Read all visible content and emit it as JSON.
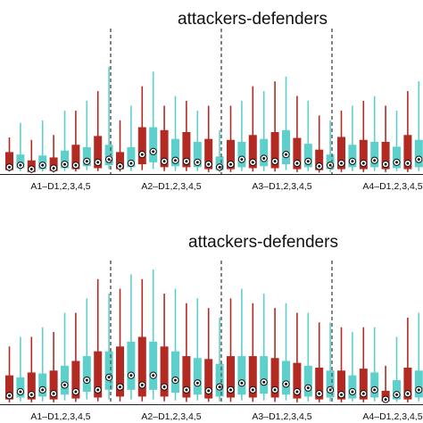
{
  "colors": {
    "attacker": "#b22a22",
    "defender": "#5dd0cb",
    "median_dot": "#111111"
  },
  "chart_data": [
    {
      "type": "box",
      "title": "attackers-defenders",
      "groups": [
        {
          "label": "A1–D1,2,3,4,5",
          "boxes": [
            {
              "series": "A",
              "whisker_low": 0.05,
              "q1": 0.08,
              "median": 0.14,
              "q3": 0.45,
              "whisker_high": 0.75
            },
            {
              "series": "D",
              "whisker_low": 0.06,
              "q1": 0.12,
              "median": 0.18,
              "q3": 0.4,
              "whisker_high": 1.05
            },
            {
              "series": "A",
              "whisker_low": 0.02,
              "q1": 0.04,
              "median": 0.1,
              "q3": 0.28,
              "whisker_high": 0.7
            },
            {
              "series": "D",
              "whisker_low": 0.05,
              "q1": 0.1,
              "median": 0.18,
              "q3": 0.38,
              "whisker_high": 1.1
            },
            {
              "series": "A",
              "whisker_low": 0.03,
              "q1": 0.06,
              "median": 0.12,
              "q3": 0.34,
              "whisker_high": 0.8
            },
            {
              "series": "D",
              "whisker_low": 0.06,
              "q1": 0.12,
              "median": 0.2,
              "q3": 0.48,
              "whisker_high": 1.3
            },
            {
              "series": "A",
              "whisker_low": 0.05,
              "q1": 0.1,
              "median": 0.18,
              "q3": 0.6,
              "whisker_high": 1.3
            },
            {
              "series": "D",
              "whisker_low": 0.08,
              "q1": 0.16,
              "median": 0.26,
              "q3": 0.55,
              "whisker_high": 1.5
            },
            {
              "series": "A",
              "whisker_low": 0.06,
              "q1": 0.12,
              "median": 0.24,
              "q3": 0.78,
              "whisker_high": 1.7
            },
            {
              "series": "D",
              "whisker_low": 0.1,
              "q1": 0.18,
              "median": 0.3,
              "q3": 0.6,
              "whisker_high": 2.2
            }
          ]
        },
        {
          "label": "A2–D1,2,3,4,5",
          "boxes": [
            {
              "series": "A",
              "whisker_low": 0.05,
              "q1": 0.1,
              "median": 0.16,
              "q3": 0.45,
              "whisker_high": 1.1
            },
            {
              "series": "D",
              "whisker_low": 0.06,
              "q1": 0.14,
              "median": 0.22,
              "q3": 0.55,
              "whisker_high": 1.4
            },
            {
              "series": "A",
              "whisker_low": 0.08,
              "q1": 0.2,
              "median": 0.4,
              "q3": 0.96,
              "whisker_high": 1.8
            },
            {
              "series": "D",
              "whisker_low": 0.1,
              "q1": 0.24,
              "median": 0.46,
              "q3": 0.96,
              "whisker_high": 2.1
            },
            {
              "series": "A",
              "whisker_low": 0.06,
              "q1": 0.14,
              "median": 0.26,
              "q3": 0.9,
              "whisker_high": 1.4
            },
            {
              "series": "D",
              "whisker_low": 0.06,
              "q1": 0.16,
              "median": 0.28,
              "q3": 0.72,
              "whisker_high": 1.6
            },
            {
              "series": "A",
              "whisker_low": 0.06,
              "q1": 0.14,
              "median": 0.26,
              "q3": 0.86,
              "whisker_high": 1.5
            },
            {
              "series": "D",
              "whisker_low": 0.06,
              "q1": 0.14,
              "median": 0.24,
              "q3": 0.66,
              "whisker_high": 1.3
            },
            {
              "series": "A",
              "whisker_low": 0.04,
              "q1": 0.1,
              "median": 0.2,
              "q3": 0.72,
              "whisker_high": 1.4
            },
            {
              "series": "D",
              "whisker_low": 0.04,
              "q1": 0.08,
              "median": 0.14,
              "q3": 0.36,
              "whisker_high": 0.9
            }
          ]
        },
        {
          "label": "A3–D1,2,3,4,5",
          "boxes": [
            {
              "series": "A",
              "whisker_low": 0.04,
              "q1": 0.1,
              "median": 0.2,
              "q3": 0.7,
              "whisker_high": 1.4
            },
            {
              "series": "D",
              "whisker_low": 0.06,
              "q1": 0.14,
              "median": 0.3,
              "q3": 0.66,
              "whisker_high": 1.5
            },
            {
              "series": "A",
              "whisker_low": 0.05,
              "q1": 0.12,
              "median": 0.24,
              "q3": 0.8,
              "whisker_high": 1.8
            },
            {
              "series": "D",
              "whisker_low": 0.06,
              "q1": 0.16,
              "median": 0.32,
              "q3": 0.72,
              "whisker_high": 1.7
            },
            {
              "series": "A",
              "whisker_low": 0.05,
              "q1": 0.12,
              "median": 0.26,
              "q3": 0.86,
              "whisker_high": 1.9
            },
            {
              "series": "D",
              "whisker_low": 0.08,
              "q1": 0.2,
              "median": 0.4,
              "q3": 0.9,
              "whisker_high": 2.0
            },
            {
              "series": "A",
              "whisker_low": 0.04,
              "q1": 0.1,
              "median": 0.22,
              "q3": 0.74,
              "whisker_high": 1.6
            },
            {
              "series": "D",
              "whisker_low": 0.06,
              "q1": 0.14,
              "median": 0.26,
              "q3": 0.62,
              "whisker_high": 1.5
            },
            {
              "series": "A",
              "whisker_low": 0.03,
              "q1": 0.08,
              "median": 0.16,
              "q3": 0.5,
              "whisker_high": 1.2
            },
            {
              "series": "D",
              "whisker_low": 0.04,
              "q1": 0.1,
              "median": 0.18,
              "q3": 0.4,
              "whisker_high": 1.1
            }
          ]
        },
        {
          "label": "A4–D1,2,3,4,5",
          "boxes": [
            {
              "series": "A",
              "whisker_low": 0.04,
              "q1": 0.1,
              "median": 0.22,
              "q3": 0.76,
              "whisker_high": 1.3
            },
            {
              "series": "D",
              "whisker_low": 0.06,
              "q1": 0.14,
              "median": 0.26,
              "q3": 0.6,
              "whisker_high": 1.4
            },
            {
              "series": "A",
              "whisker_low": 0.04,
              "q1": 0.1,
              "median": 0.22,
              "q3": 0.7,
              "whisker_high": 1.5
            },
            {
              "series": "D",
              "whisker_low": 0.06,
              "q1": 0.14,
              "median": 0.28,
              "q3": 0.66,
              "whisker_high": 1.6
            },
            {
              "series": "A",
              "whisker_low": 0.04,
              "q1": 0.1,
              "median": 0.2,
              "q3": 0.66,
              "whisker_high": 1.4
            },
            {
              "series": "D",
              "whisker_low": 0.06,
              "q1": 0.12,
              "median": 0.24,
              "q3": 0.56,
              "whisker_high": 1.3
            },
            {
              "series": "A",
              "whisker_low": 0.04,
              "q1": 0.1,
              "median": 0.22,
              "q3": 0.8,
              "whisker_high": 1.7
            },
            {
              "series": "D",
              "whisker_low": 0.06,
              "q1": 0.14,
              "median": 0.3,
              "q3": 0.7,
              "whisker_high": 1.9
            },
            {
              "series": "A",
              "whisker_low": 0.05,
              "q1": 0.12,
              "median": 0.26,
              "q3": 0.9,
              "whisker_high": 1.8
            },
            {
              "series": "D",
              "whisker_low": 0.06,
              "q1": 0.16,
              "median": 0.32,
              "q3": 0.8,
              "whisker_high": 2.0
            }
          ]
        }
      ]
    },
    {
      "type": "box",
      "title": "attackers-defenders",
      "groups": [
        {
          "label": "A1–D1,2,3,4,5",
          "boxes": [
            {
              "series": "A",
              "whisker_low": 0.04,
              "q1": 0.1,
              "median": 0.18,
              "q3": 0.6,
              "whisker_high": 1.2
            },
            {
              "series": "D",
              "whisker_low": 0.06,
              "q1": 0.14,
              "median": 0.26,
              "q3": 0.56,
              "whisker_high": 1.4
            },
            {
              "series": "A",
              "whisker_low": 0.04,
              "q1": 0.1,
              "median": 0.2,
              "q3": 0.66,
              "whisker_high": 1.4
            },
            {
              "series": "D",
              "whisker_low": 0.06,
              "q1": 0.16,
              "median": 0.3,
              "q3": 0.64,
              "whisker_high": 1.6
            },
            {
              "series": "A",
              "whisker_low": 0.04,
              "q1": 0.1,
              "median": 0.22,
              "q3": 0.7,
              "whisker_high": 1.5
            },
            {
              "series": "D",
              "whisker_low": 0.08,
              "q1": 0.2,
              "median": 0.4,
              "q3": 0.8,
              "whisker_high": 1.9
            },
            {
              "series": "A",
              "whisker_low": 0.05,
              "q1": 0.12,
              "median": 0.26,
              "q3": 0.9,
              "whisker_high": 1.9
            },
            {
              "series": "D",
              "whisker_low": 0.1,
              "q1": 0.26,
              "median": 0.5,
              "q3": 1.0,
              "whisker_high": 2.2
            },
            {
              "series": "A",
              "whisker_low": 0.06,
              "q1": 0.14,
              "median": 0.3,
              "q3": 1.1,
              "whisker_high": 2.6
            },
            {
              "series": "D",
              "whisker_low": 0.1,
              "q1": 0.3,
              "median": 0.56,
              "q3": 1.1,
              "whisker_high": 2.3
            }
          ]
        },
        {
          "label": "A2–D1,2,3,4,5",
          "boxes": [
            {
              "series": "A",
              "whisker_low": 0.06,
              "q1": 0.16,
              "median": 0.36,
              "q3": 1.2,
              "whisker_high": 2.4
            },
            {
              "series": "D",
              "whisker_low": 0.1,
              "q1": 0.3,
              "median": 0.6,
              "q3": 1.3,
              "whisker_high": 2.7
            },
            {
              "series": "A",
              "whisker_low": 0.06,
              "q1": 0.16,
              "median": 0.4,
              "q3": 1.4,
              "whisker_high": 2.6
            },
            {
              "series": "D",
              "whisker_low": 0.1,
              "q1": 0.3,
              "median": 0.6,
              "q3": 1.3,
              "whisker_high": 2.8
            },
            {
              "series": "A",
              "whisker_low": 0.06,
              "q1": 0.16,
              "median": 0.36,
              "q3": 1.2,
              "whisker_high": 2.3
            },
            {
              "series": "D",
              "whisker_low": 0.08,
              "q1": 0.24,
              "median": 0.5,
              "q3": 1.1,
              "whisker_high": 2.4
            },
            {
              "series": "A",
              "whisker_low": 0.05,
              "q1": 0.14,
              "median": 0.3,
              "q3": 1.0,
              "whisker_high": 2.1
            },
            {
              "series": "D",
              "whisker_low": 0.08,
              "q1": 0.2,
              "median": 0.44,
              "q3": 0.96,
              "whisker_high": 2.2
            },
            {
              "series": "A",
              "whisker_low": 0.05,
              "q1": 0.12,
              "median": 0.28,
              "q3": 0.94,
              "whisker_high": 2.0
            },
            {
              "series": "D",
              "whisker_low": 0.06,
              "q1": 0.16,
              "median": 0.36,
              "q3": 0.84,
              "whisker_high": 1.8
            }
          ]
        },
        {
          "label": "A3–D1,2,3,4,5",
          "boxes": [
            {
              "series": "A",
              "whisker_low": 0.05,
              "q1": 0.14,
              "median": 0.3,
              "q3": 1.0,
              "whisker_high": 2.2
            },
            {
              "series": "D",
              "whisker_low": 0.08,
              "q1": 0.2,
              "median": 0.44,
              "q3": 1.0,
              "whisker_high": 2.4
            },
            {
              "series": "A",
              "whisker_low": 0.05,
              "q1": 0.14,
              "median": 0.3,
              "q3": 1.0,
              "whisker_high": 2.1
            },
            {
              "series": "D",
              "whisker_low": 0.08,
              "q1": 0.22,
              "median": 0.46,
              "q3": 1.0,
              "whisker_high": 2.3
            },
            {
              "series": "A",
              "whisker_low": 0.05,
              "q1": 0.14,
              "median": 0.3,
              "q3": 0.96,
              "whisker_high": 2.0
            },
            {
              "series": "D",
              "whisker_low": 0.08,
              "q1": 0.2,
              "median": 0.42,
              "q3": 0.9,
              "whisker_high": 2.1
            },
            {
              "series": "A",
              "whisker_low": 0.04,
              "q1": 0.12,
              "median": 0.26,
              "q3": 0.86,
              "whisker_high": 1.9
            },
            {
              "series": "D",
              "whisker_low": 0.06,
              "q1": 0.16,
              "median": 0.34,
              "q3": 0.8,
              "whisker_high": 1.9
            },
            {
              "series": "A",
              "whisker_low": 0.04,
              "q1": 0.1,
              "median": 0.22,
              "q3": 0.76,
              "whisker_high": 1.7
            },
            {
              "series": "D",
              "whisker_low": 0.06,
              "q1": 0.14,
              "median": 0.3,
              "q3": 0.7,
              "whisker_high": 1.7
            }
          ]
        },
        {
          "label": "A4–D1,2,3,4,5",
          "boxes": [
            {
              "series": "A",
              "whisker_low": 0.04,
              "q1": 0.1,
              "median": 0.2,
              "q3": 0.7,
              "whisker_high": 1.6
            },
            {
              "series": "D",
              "whisker_low": 0.06,
              "q1": 0.12,
              "median": 0.26,
              "q3": 0.6,
              "whisker_high": 1.5
            },
            {
              "series": "A",
              "whisker_low": 0.04,
              "q1": 0.1,
              "median": 0.22,
              "q3": 0.74,
              "whisker_high": 1.6
            },
            {
              "series": "D",
              "whisker_low": 0.06,
              "q1": 0.14,
              "median": 0.3,
              "q3": 0.66,
              "whisker_high": 1.6
            },
            {
              "series": "A",
              "whisker_low": 0.03,
              "q1": 0.06,
              "median": 0.1,
              "q3": 0.28,
              "whisker_high": 0.8
            },
            {
              "series": "D",
              "whisker_low": 0.05,
              "q1": 0.1,
              "median": 0.2,
              "q3": 0.5,
              "whisker_high": 1.4
            },
            {
              "series": "A",
              "whisker_low": 0.04,
              "q1": 0.1,
              "median": 0.22,
              "q3": 0.76,
              "whisker_high": 1.8
            },
            {
              "series": "D",
              "whisker_low": 0.06,
              "q1": 0.14,
              "median": 0.3,
              "q3": 0.7,
              "whisker_high": 1.9
            },
            {
              "series": "A",
              "whisker_low": 0.05,
              "q1": 0.12,
              "median": 0.26,
              "q3": 0.9,
              "whisker_high": 1.9
            },
            {
              "series": "D",
              "whisker_low": 0.06,
              "q1": 0.16,
              "median": 0.34,
              "q3": 0.8,
              "whisker_high": 2.0
            }
          ]
        }
      ]
    }
  ]
}
